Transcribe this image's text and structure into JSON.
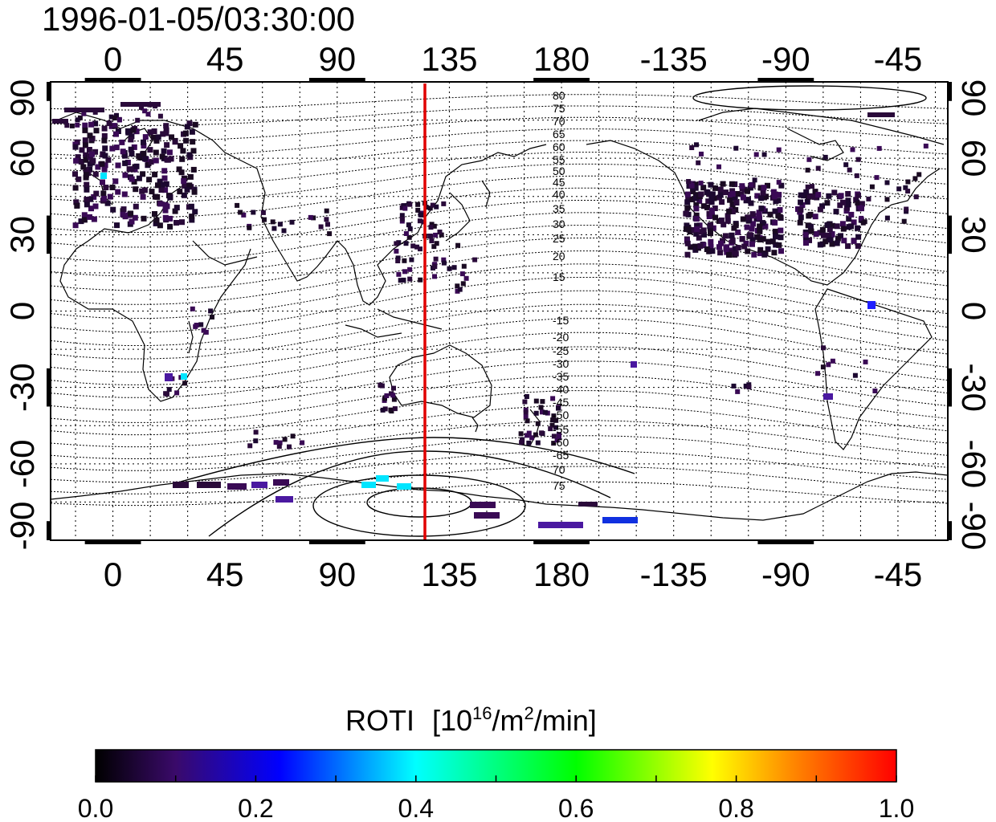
{
  "timestamp": "1996-01-05/03:30:00",
  "map": {
    "lon_range": [
      -25,
      335
    ],
    "lat_range": [
      -90,
      90
    ],
    "lon_ticks": [
      0,
      45,
      90,
      135,
      180,
      225,
      270,
      315
    ],
    "lon_tick_labels": [
      "0",
      "45",
      "90",
      "135",
      "180",
      "-135",
      "-90",
      "-45"
    ],
    "lat_ticks": [
      90,
      60,
      30,
      0,
      -30,
      -60,
      -90
    ],
    "lat_tick_labels": [
      "90",
      "60",
      "30",
      "0",
      "-30",
      "-60",
      "-90"
    ],
    "grid_step_deg": 15,
    "grid": true,
    "marker_line": {
      "lon": 127.5,
      "color": "#e00000"
    },
    "contour_labels_north": [
      "80",
      "75",
      "70",
      "65",
      "60",
      "55",
      "50",
      "45",
      "40",
      "35",
      "30",
      "25",
      "20",
      "15"
    ],
    "contour_labels_south": [
      "-15",
      "-20",
      "-25",
      "-30",
      "-35",
      "-40",
      "-45",
      "-50",
      "-55",
      "-60",
      "-65",
      "70",
      "75"
    ]
  },
  "colorbar": {
    "title": "ROTI",
    "units_prefix": "[10",
    "units_exp": "16",
    "units_mid": "/m",
    "units_exp2": "2",
    "units_suffix": "/min]",
    "min": 0.0,
    "max": 1.0,
    "tick_labels": [
      "0.0",
      "0.2",
      "0.4",
      "0.6",
      "0.8",
      "1.0"
    ],
    "colors": [
      "#000000",
      "#3a0a6a",
      "#0000ff",
      "#00ffff",
      "#00ff00",
      "#ffff00",
      "#ff0000"
    ]
  }
}
